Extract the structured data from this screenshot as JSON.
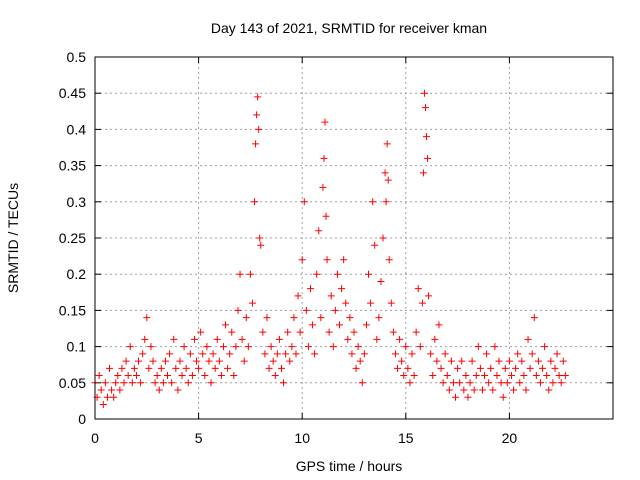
{
  "chart_data": {
    "type": "scatter",
    "title": "Day 143 of 2021, SRMTID for receiver kman",
    "xlabel": "GPS time / hours",
    "ylabel": "SRMTID / TECUs",
    "xlim": [
      0,
      25
    ],
    "ylim": [
      0,
      0.5
    ],
    "x_ticks": [
      0,
      5,
      10,
      15,
      20
    ],
    "x_tick_labels": [
      "0",
      "5",
      "10",
      "15",
      "20"
    ],
    "y_ticks": [
      0,
      0.05,
      0.1,
      0.15,
      0.2,
      0.25,
      0.3,
      0.35,
      0.4,
      0.45,
      0.5
    ],
    "y_tick_labels": [
      "0",
      "0.05",
      "0.1",
      "0.15",
      "0.2",
      "0.25",
      "0.3",
      "0.35",
      "0.4",
      "0.45",
      "0.5"
    ],
    "grid": true,
    "marker": "+",
    "color": "#ff0000",
    "series": [
      {
        "name": "SRMTID",
        "points": [
          [
            0.0,
            0.05
          ],
          [
            0.1,
            0.03
          ],
          [
            0.2,
            0.06
          ],
          [
            0.3,
            0.04
          ],
          [
            0.4,
            0.02
          ],
          [
            0.5,
            0.05
          ],
          [
            0.6,
            0.03
          ],
          [
            0.7,
            0.07
          ],
          [
            0.8,
            0.04
          ],
          [
            0.9,
            0.03
          ],
          [
            1.0,
            0.05
          ],
          [
            1.1,
            0.06
          ],
          [
            1.2,
            0.04
          ],
          [
            1.3,
            0.07
          ],
          [
            1.4,
            0.05
          ],
          [
            1.5,
            0.08
          ],
          [
            1.6,
            0.06
          ],
          [
            1.7,
            0.1
          ],
          [
            1.8,
            0.05
          ],
          [
            1.9,
            0.07
          ],
          [
            2.0,
            0.06
          ],
          [
            2.1,
            0.08
          ],
          [
            2.2,
            0.05
          ],
          [
            2.3,
            0.09
          ],
          [
            2.4,
            0.11
          ],
          [
            2.5,
            0.14
          ],
          [
            2.6,
            0.07
          ],
          [
            2.7,
            0.1
          ],
          [
            2.8,
            0.08
          ],
          [
            2.9,
            0.05
          ],
          [
            3.0,
            0.06
          ],
          [
            3.1,
            0.04
          ],
          [
            3.2,
            0.07
          ],
          [
            3.3,
            0.05
          ],
          [
            3.4,
            0.08
          ],
          [
            3.5,
            0.06
          ],
          [
            3.6,
            0.09
          ],
          [
            3.7,
            0.05
          ],
          [
            3.8,
            0.11
          ],
          [
            3.9,
            0.07
          ],
          [
            4.0,
            0.04
          ],
          [
            4.1,
            0.08
          ],
          [
            4.2,
            0.06
          ],
          [
            4.3,
            0.1
          ],
          [
            4.4,
            0.07
          ],
          [
            4.5,
            0.05
          ],
          [
            4.6,
            0.09
          ],
          [
            4.7,
            0.06
          ],
          [
            4.8,
            0.11
          ],
          [
            4.9,
            0.08
          ],
          [
            5.0,
            0.07
          ],
          [
            5.1,
            0.12
          ],
          [
            5.2,
            0.09
          ],
          [
            5.3,
            0.06
          ],
          [
            5.4,
            0.1
          ],
          [
            5.5,
            0.08
          ],
          [
            5.6,
            0.05
          ],
          [
            5.7,
            0.09
          ],
          [
            5.8,
            0.07
          ],
          [
            5.9,
            0.11
          ],
          [
            6.0,
            0.08
          ],
          [
            6.1,
            0.06
          ],
          [
            6.2,
            0.1
          ],
          [
            6.3,
            0.13
          ],
          [
            6.4,
            0.07
          ],
          [
            6.5,
            0.09
          ],
          [
            6.6,
            0.12
          ],
          [
            6.7,
            0.06
          ],
          [
            6.8,
            0.1
          ],
          [
            6.9,
            0.15
          ],
          [
            7.0,
            0.2
          ],
          [
            7.1,
            0.11
          ],
          [
            7.2,
            0.08
          ],
          [
            7.3,
            0.14
          ],
          [
            7.4,
            0.1
          ],
          [
            7.5,
            0.2
          ],
          [
            7.6,
            0.16
          ],
          [
            7.7,
            0.3
          ],
          [
            7.75,
            0.38
          ],
          [
            7.8,
            0.42
          ],
          [
            7.85,
            0.445
          ],
          [
            7.9,
            0.4
          ],
          [
            7.95,
            0.25
          ],
          [
            8.0,
            0.24
          ],
          [
            8.1,
            0.12
          ],
          [
            8.2,
            0.09
          ],
          [
            8.3,
            0.14
          ],
          [
            8.4,
            0.07
          ],
          [
            8.5,
            0.1
          ],
          [
            8.6,
            0.08
          ],
          [
            8.7,
            0.06
          ],
          [
            8.8,
            0.09
          ],
          [
            8.9,
            0.11
          ],
          [
            9.0,
            0.07
          ],
          [
            9.1,
            0.05
          ],
          [
            9.2,
            0.09
          ],
          [
            9.3,
            0.12
          ],
          [
            9.4,
            0.08
          ],
          [
            9.5,
            0.1
          ],
          [
            9.6,
            0.14
          ],
          [
            9.7,
            0.09
          ],
          [
            9.8,
            0.17
          ],
          [
            9.9,
            0.12
          ],
          [
            10.0,
            0.22
          ],
          [
            10.1,
            0.3
          ],
          [
            10.2,
            0.15
          ],
          [
            10.3,
            0.1
          ],
          [
            10.4,
            0.18
          ],
          [
            10.5,
            0.13
          ],
          [
            10.6,
            0.09
          ],
          [
            10.7,
            0.2
          ],
          [
            10.8,
            0.26
          ],
          [
            10.9,
            0.14
          ],
          [
            11.0,
            0.32
          ],
          [
            11.05,
            0.36
          ],
          [
            11.1,
            0.41
          ],
          [
            11.15,
            0.28
          ],
          [
            11.2,
            0.22
          ],
          [
            11.3,
            0.12
          ],
          [
            11.4,
            0.17
          ],
          [
            11.5,
            0.1
          ],
          [
            11.6,
            0.15
          ],
          [
            11.7,
            0.2
          ],
          [
            11.8,
            0.13
          ],
          [
            11.9,
            0.18
          ],
          [
            12.0,
            0.22
          ],
          [
            12.1,
            0.16
          ],
          [
            12.2,
            0.11
          ],
          [
            12.3,
            0.14
          ],
          [
            12.4,
            0.09
          ],
          [
            12.5,
            0.12
          ],
          [
            12.6,
            0.07
          ],
          [
            12.7,
            0.1
          ],
          [
            12.8,
            0.08
          ],
          [
            12.9,
            0.05
          ],
          [
            13.0,
            0.09
          ],
          [
            13.1,
            0.13
          ],
          [
            13.2,
            0.2
          ],
          [
            13.3,
            0.16
          ],
          [
            13.4,
            0.3
          ],
          [
            13.5,
            0.24
          ],
          [
            13.6,
            0.11
          ],
          [
            13.7,
            0.14
          ],
          [
            13.8,
            0.19
          ],
          [
            13.9,
            0.25
          ],
          [
            14.0,
            0.34
          ],
          [
            14.05,
            0.3
          ],
          [
            14.1,
            0.38
          ],
          [
            14.15,
            0.33
          ],
          [
            14.2,
            0.22
          ],
          [
            14.3,
            0.16
          ],
          [
            14.4,
            0.12
          ],
          [
            14.5,
            0.09
          ],
          [
            14.6,
            0.07
          ],
          [
            14.7,
            0.11
          ],
          [
            14.8,
            0.08
          ],
          [
            14.9,
            0.06
          ],
          [
            15.0,
            0.1
          ],
          [
            15.1,
            0.07
          ],
          [
            15.2,
            0.05
          ],
          [
            15.3,
            0.09
          ],
          [
            15.4,
            0.06
          ],
          [
            15.5,
            0.12
          ],
          [
            15.6,
            0.18
          ],
          [
            15.7,
            0.1
          ],
          [
            15.8,
            0.16
          ],
          [
            15.85,
            0.34
          ],
          [
            15.9,
            0.45
          ],
          [
            15.95,
            0.43
          ],
          [
            16.0,
            0.39
          ],
          [
            16.05,
            0.36
          ],
          [
            16.1,
            0.17
          ],
          [
            16.2,
            0.09
          ],
          [
            16.3,
            0.06
          ],
          [
            16.4,
            0.11
          ],
          [
            16.5,
            0.08
          ],
          [
            16.6,
            0.13
          ],
          [
            16.7,
            0.07
          ],
          [
            16.8,
            0.05
          ],
          [
            16.9,
            0.09
          ],
          [
            17.0,
            0.06
          ],
          [
            17.1,
            0.04
          ],
          [
            17.2,
            0.08
          ],
          [
            17.3,
            0.05
          ],
          [
            17.4,
            0.03
          ],
          [
            17.5,
            0.07
          ],
          [
            17.6,
            0.05
          ],
          [
            17.7,
            0.08
          ],
          [
            17.8,
            0.04
          ],
          [
            17.9,
            0.06
          ],
          [
            18.0,
            0.03
          ],
          [
            18.1,
            0.05
          ],
          [
            18.2,
            0.08
          ],
          [
            18.3,
            0.04
          ],
          [
            18.4,
            0.06
          ],
          [
            18.5,
            0.1
          ],
          [
            18.6,
            0.07
          ],
          [
            18.7,
            0.04
          ],
          [
            18.8,
            0.06
          ],
          [
            18.9,
            0.09
          ],
          [
            19.0,
            0.05
          ],
          [
            19.1,
            0.07
          ],
          [
            19.2,
            0.04
          ],
          [
            19.3,
            0.1
          ],
          [
            19.4,
            0.06
          ],
          [
            19.5,
            0.08
          ],
          [
            19.6,
            0.05
          ],
          [
            19.7,
            0.03
          ],
          [
            19.8,
            0.07
          ],
          [
            19.9,
            0.05
          ],
          [
            20.0,
            0.08
          ],
          [
            20.1,
            0.06
          ],
          [
            20.2,
            0.04
          ],
          [
            20.3,
            0.07
          ],
          [
            20.4,
            0.09
          ],
          [
            20.5,
            0.05
          ],
          [
            20.6,
            0.08
          ],
          [
            20.7,
            0.06
          ],
          [
            20.8,
            0.04
          ],
          [
            20.9,
            0.11
          ],
          [
            21.0,
            0.07
          ],
          [
            21.1,
            0.09
          ],
          [
            21.2,
            0.14
          ],
          [
            21.3,
            0.06
          ],
          [
            21.4,
            0.08
          ],
          [
            21.5,
            0.05
          ],
          [
            21.6,
            0.07
          ],
          [
            21.7,
            0.1
          ],
          [
            21.8,
            0.06
          ],
          [
            21.9,
            0.04
          ],
          [
            22.0,
            0.08
          ],
          [
            22.1,
            0.05
          ],
          [
            22.2,
            0.07
          ],
          [
            22.3,
            0.09
          ],
          [
            22.4,
            0.06
          ],
          [
            22.5,
            0.05
          ],
          [
            22.6,
            0.08
          ],
          [
            22.7,
            0.06
          ]
        ]
      }
    ]
  }
}
